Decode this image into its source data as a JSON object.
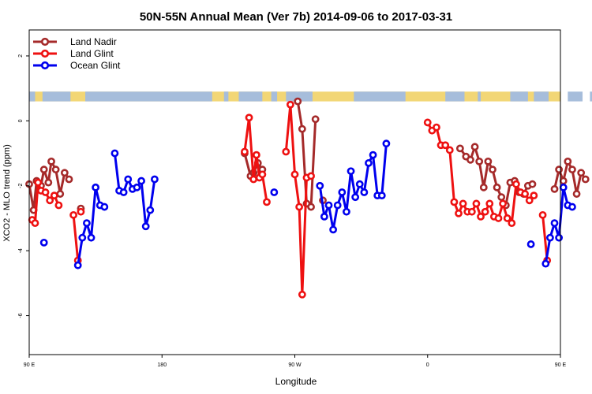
{
  "chart_data": {
    "type": "line",
    "title": "50N-55N Annual Mean (Ver 7b)   2014-09-06 to 2017-03-31",
    "xlabel": "Longitude",
    "ylabel": "XCO2 - MLO trend (ppm)",
    "xlim": [
      90,
      450
    ],
    "ylim": [
      -7.2,
      2.8
    ],
    "x_ticks": [
      {
        "value": 90,
        "label": "90 E"
      },
      {
        "value": 180,
        "label": "180"
      },
      {
        "value": 270,
        "label": "90 W"
      },
      {
        "value": 360,
        "label": "0"
      },
      {
        "value": 450,
        "label": "90 E"
      },
      {
        "value": 540,
        "label": "180"
      }
    ],
    "y_ticks": [
      {
        "value": 2,
        "label": "2"
      },
      {
        "value": 0,
        "label": "0"
      },
      {
        "value": -2,
        "label": "-2"
      },
      {
        "value": -4,
        "label": "-4"
      },
      {
        "value": -6,
        "label": "-6"
      }
    ],
    "land_mask_band": {
      "y_top": 0.9,
      "y_bottom": 0.6,
      "ocean_color": "#a6bddb",
      "land_color": "#f2d675"
    },
    "legend_position": "top-left",
    "series": [
      {
        "name": "Land Nadir",
        "color": "#a52a2a",
        "points": [
          [
            90,
            -1.95
          ],
          [
            93,
            -2.75
          ],
          [
            95,
            -1.85
          ],
          [
            98,
            -2.0
          ],
          [
            100,
            -1.5
          ],
          [
            103,
            -1.9
          ],
          [
            105,
            -1.25
          ],
          [
            108,
            -1.5
          ],
          [
            111,
            -2.25
          ],
          [
            114,
            -1.6
          ],
          [
            117,
            -1.8
          ],
          [
            null,
            null
          ],
          [
            125,
            -2.7
          ],
          [
            null,
            null
          ],
          [
            236,
            -1.0
          ],
          [
            240,
            -1.7
          ],
          [
            242,
            -1.6
          ],
          [
            245,
            -1.3
          ],
          [
            248,
            -1.5
          ],
          [
            null,
            null
          ],
          [
            272,
            0.6
          ],
          [
            275,
            -0.25
          ],
          [
            278,
            -2.55
          ],
          [
            281,
            -2.65
          ],
          [
            284,
            0.05
          ],
          [
            null,
            null
          ],
          [
            289,
            -2.45
          ],
          [
            null,
            null
          ],
          [
            382,
            -0.85
          ],
          [
            386,
            -1.1
          ],
          [
            389,
            -1.2
          ],
          [
            392,
            -0.8
          ],
          [
            395,
            -1.25
          ],
          [
            398,
            -2.05
          ],
          [
            401,
            -1.25
          ],
          [
            404,
            -1.5
          ],
          [
            407,
            -2.05
          ],
          [
            410,
            -2.35
          ],
          [
            413,
            -2.6
          ],
          [
            416,
            -1.9
          ],
          [
            419,
            -1.85
          ],
          [
            422,
            -2.2
          ],
          [
            425,
            -2.25
          ],
          [
            428,
            -2.0
          ],
          [
            431,
            -1.95
          ],
          [
            null,
            null
          ],
          [
            446,
            -2.1
          ],
          [
            449,
            -1.5
          ],
          [
            452,
            -1.85
          ],
          [
            455,
            -1.25
          ],
          [
            458,
            -1.5
          ],
          [
            461,
            -2.25
          ],
          [
            464,
            -1.6
          ],
          [
            467,
            -1.8
          ],
          [
            null,
            null
          ],
          [
            479,
            -2.7
          ]
        ]
      },
      {
        "name": "Land Glint",
        "color": "#ee1111",
        "points": [
          [
            92,
            -3.05
          ],
          [
            94,
            -3.15
          ],
          [
            96,
            -1.9
          ],
          [
            98,
            -2.15
          ],
          [
            101,
            -2.2
          ],
          [
            104,
            -2.45
          ],
          [
            107,
            -2.3
          ],
          [
            110,
            -2.6
          ],
          [
            null,
            null
          ],
          [
            120,
            -2.9
          ],
          [
            123,
            -4.3
          ],
          [
            null,
            null
          ],
          [
            125,
            -2.8
          ],
          [
            null,
            null
          ],
          [
            236,
            -0.95
          ],
          [
            239,
            0.1
          ],
          [
            242,
            -1.8
          ],
          [
            244,
            -1.05
          ],
          [
            246,
            -1.75
          ],
          [
            248,
            -1.65
          ],
          [
            251,
            -2.5
          ],
          [
            null,
            null
          ],
          [
            264,
            -0.95
          ],
          [
            267,
            0.5
          ],
          [
            270,
            -1.65
          ],
          [
            273,
            -2.65
          ],
          [
            275,
            -5.35
          ],
          [
            278,
            -1.75
          ],
          [
            281,
            -1.7
          ],
          [
            null,
            null
          ],
          [
            360,
            -0.05
          ],
          [
            363,
            -0.3
          ],
          [
            366,
            -0.2
          ],
          [
            369,
            -0.75
          ],
          [
            372,
            -0.75
          ],
          [
            375,
            -0.9
          ],
          [
            378,
            -2.5
          ],
          [
            381,
            -2.85
          ],
          [
            384,
            -2.55
          ],
          [
            387,
            -2.8
          ],
          [
            390,
            -2.8
          ],
          [
            393,
            -2.55
          ],
          [
            396,
            -2.95
          ],
          [
            399,
            -2.8
          ],
          [
            402,
            -2.55
          ],
          [
            405,
            -2.95
          ],
          [
            408,
            -3.0
          ],
          [
            411,
            -2.55
          ],
          [
            414,
            -3.0
          ],
          [
            417,
            -3.15
          ],
          [
            420,
            -1.95
          ],
          [
            423,
            -2.2
          ],
          [
            426,
            -2.25
          ],
          [
            429,
            -2.45
          ],
          [
            432,
            -2.3
          ],
          [
            null,
            null
          ],
          [
            438,
            -2.9
          ],
          [
            441,
            -4.3
          ],
          [
            null,
            null
          ],
          [
            478,
            -2.75
          ]
        ]
      },
      {
        "name": "Ocean Glint",
        "color": "#0000ee",
        "points": [
          [
            100,
            -3.75
          ],
          [
            null,
            null
          ],
          [
            123,
            -4.45
          ],
          [
            126,
            -3.6
          ],
          [
            129,
            -3.15
          ],
          [
            132,
            -3.6
          ],
          [
            135,
            -2.05
          ],
          [
            138,
            -2.6
          ],
          [
            141,
            -2.65
          ],
          [
            null,
            null
          ],
          [
            148,
            -1.0
          ],
          [
            151,
            -2.15
          ],
          [
            154,
            -2.2
          ],
          [
            157,
            -1.8
          ],
          [
            160,
            -2.1
          ],
          [
            163,
            -2.05
          ],
          [
            166,
            -1.85
          ],
          [
            169,
            -3.25
          ],
          [
            172,
            -2.75
          ],
          [
            175,
            -1.8
          ],
          [
            null,
            null
          ],
          [
            256,
            -2.2
          ],
          [
            null,
            null
          ],
          [
            287,
            -2.0
          ],
          [
            290,
            -2.95
          ],
          [
            293,
            -2.6
          ],
          [
            296,
            -3.35
          ],
          [
            299,
            -2.6
          ],
          [
            302,
            -2.2
          ],
          [
            305,
            -2.8
          ],
          [
            308,
            -1.55
          ],
          [
            311,
            -2.35
          ],
          [
            314,
            -1.95
          ],
          [
            317,
            -2.2
          ],
          [
            320,
            -1.3
          ],
          [
            323,
            -1.05
          ],
          [
            326,
            -2.3
          ],
          [
            329,
            -2.3
          ],
          [
            332,
            -0.7
          ],
          [
            null,
            null
          ],
          [
            430,
            -3.8
          ],
          [
            null,
            null
          ],
          [
            440,
            -4.4
          ],
          [
            443,
            -3.6
          ],
          [
            446,
            -3.15
          ],
          [
            449,
            -3.6
          ],
          [
            452,
            -2.05
          ],
          [
            455,
            -2.6
          ],
          [
            458,
            -2.65
          ]
        ]
      }
    ]
  }
}
